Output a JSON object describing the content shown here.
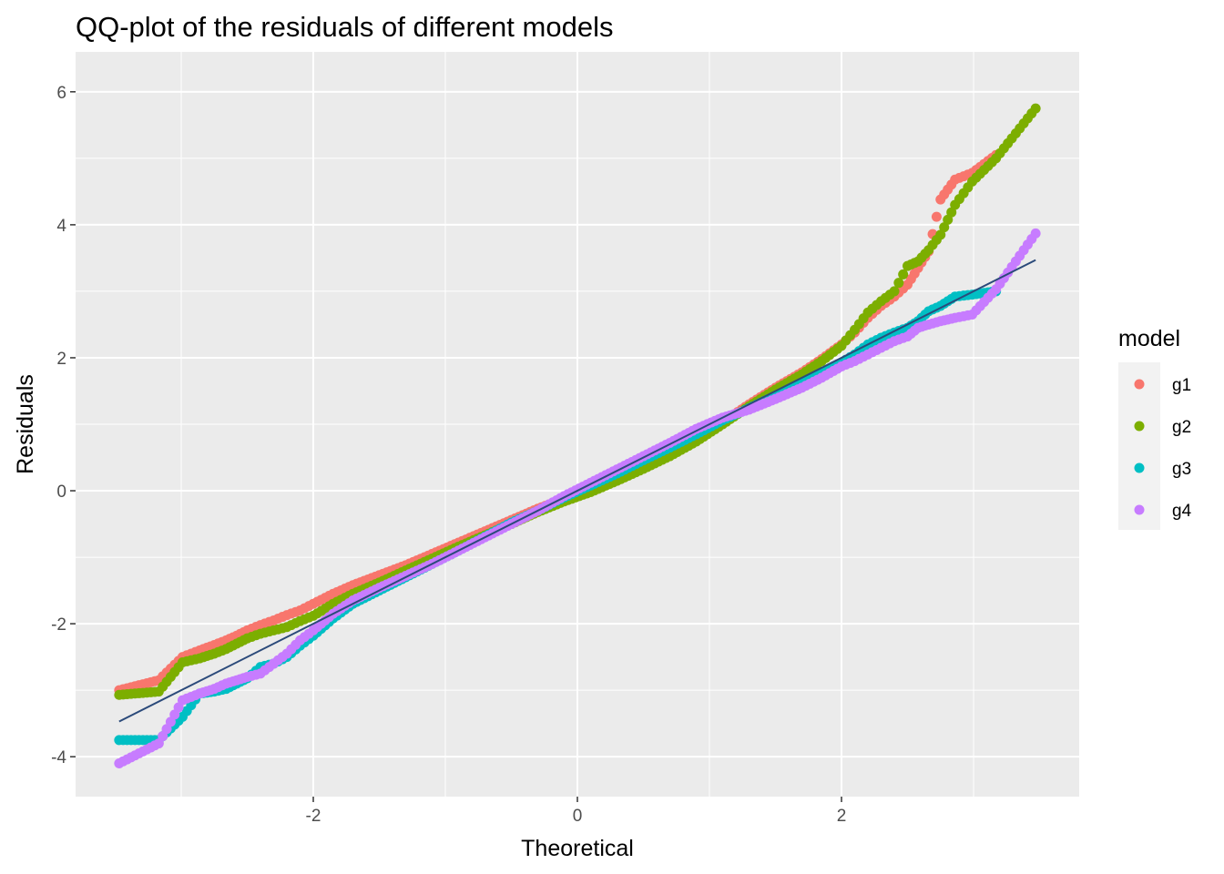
{
  "chart_data": {
    "type": "scatter",
    "title": "QQ-plot of the residuals of different models",
    "xlabel": "Theoretical",
    "ylabel": "Residuals",
    "xlim": [
      -3.8,
      3.8
    ],
    "ylim": [
      -4.6,
      6.6
    ],
    "x_ticks": [
      -2,
      0,
      2
    ],
    "x_tick_labels": [
      "-2",
      "0",
      "2"
    ],
    "y_ticks": [
      -4,
      -2,
      0,
      2,
      4,
      6
    ],
    "y_tick_labels": [
      "-4",
      "-2",
      "0",
      "2",
      "4",
      "6"
    ],
    "grid": true,
    "legend": {
      "title": "model",
      "position": "right"
    },
    "reference_line": {
      "x": [
        -3.47,
        3.47
      ],
      "y": [
        -3.47,
        3.47
      ],
      "color": "#2b4a7a"
    },
    "series": [
      {
        "name": "g1",
        "color": "#F8766D",
        "x": [
          -3.47,
          -3.17,
          -2.99,
          -2.86,
          -2.75,
          -2.66,
          -2.58,
          -2.5,
          -2.4,
          -2.3,
          -2.2,
          -2.1,
          -2.0,
          -1.85,
          -1.7,
          -1.5,
          -1.3,
          -1.1,
          -0.9,
          -0.7,
          -0.5,
          -0.3,
          -0.1,
          0.1,
          0.3,
          0.5,
          0.7,
          0.9,
          1.1,
          1.3,
          1.5,
          1.7,
          1.85,
          2.0,
          2.1,
          2.2,
          2.3,
          2.4,
          2.5,
          2.58,
          2.66,
          2.75,
          2.86,
          2.99,
          3.17
        ],
        "y": [
          -3.0,
          -2.85,
          -2.5,
          -2.4,
          -2.32,
          -2.25,
          -2.18,
          -2.1,
          -2.02,
          -1.95,
          -1.87,
          -1.8,
          -1.7,
          -1.55,
          -1.42,
          -1.27,
          -1.12,
          -0.95,
          -0.78,
          -0.61,
          -0.44,
          -0.27,
          -0.12,
          0.02,
          0.18,
          0.36,
          0.55,
          0.78,
          1.03,
          1.3,
          1.55,
          1.78,
          1.98,
          2.2,
          2.38,
          2.6,
          2.78,
          2.92,
          3.1,
          3.35,
          3.6,
          4.38,
          4.68,
          4.78,
          5.05
        ]
      },
      {
        "name": "g2",
        "color": "#7CAE00",
        "x": [
          -3.47,
          -3.17,
          -2.99,
          -2.86,
          -2.75,
          -2.66,
          -2.58,
          -2.5,
          -2.4,
          -2.3,
          -2.2,
          -2.1,
          -2.0,
          -1.85,
          -1.7,
          -1.5,
          -1.3,
          -1.1,
          -0.9,
          -0.7,
          -0.5,
          -0.3,
          -0.1,
          0.1,
          0.3,
          0.5,
          0.7,
          0.9,
          1.1,
          1.3,
          1.5,
          1.7,
          1.85,
          2.0,
          2.1,
          2.2,
          2.3,
          2.4,
          2.5,
          2.58,
          2.66,
          2.75,
          2.86,
          2.99,
          3.17,
          3.47
        ],
        "y": [
          -3.07,
          -3.02,
          -2.58,
          -2.52,
          -2.45,
          -2.38,
          -2.3,
          -2.22,
          -2.15,
          -2.1,
          -2.05,
          -1.96,
          -1.88,
          -1.7,
          -1.55,
          -1.38,
          -1.2,
          -1.02,
          -0.84,
          -0.67,
          -0.5,
          -0.32,
          -0.16,
          -0.02,
          0.15,
          0.33,
          0.52,
          0.74,
          1.0,
          1.27,
          1.52,
          1.75,
          1.95,
          2.18,
          2.42,
          2.68,
          2.85,
          3.0,
          3.38,
          3.45,
          3.62,
          3.85,
          4.3,
          4.65,
          5.0,
          5.75
        ]
      },
      {
        "name": "g3",
        "color": "#00BFC4",
        "x": [
          -3.47,
          -3.17,
          -2.99,
          -2.86,
          -2.75,
          -2.66,
          -2.58,
          -2.5,
          -2.4,
          -2.3,
          -2.2,
          -2.1,
          -2.0,
          -1.85,
          -1.7,
          -1.5,
          -1.3,
          -1.1,
          -0.9,
          -0.7,
          -0.5,
          -0.3,
          -0.1,
          0.1,
          0.3,
          0.5,
          0.7,
          0.9,
          1.1,
          1.3,
          1.5,
          1.7,
          1.85,
          2.0,
          2.1,
          2.2,
          2.3,
          2.4,
          2.5,
          2.58,
          2.66,
          2.75,
          2.86,
          2.99,
          3.17
        ],
        "y": [
          -3.75,
          -3.75,
          -3.4,
          -3.05,
          -3.02,
          -2.98,
          -2.9,
          -2.82,
          -2.65,
          -2.6,
          -2.5,
          -2.33,
          -2.18,
          -1.92,
          -1.7,
          -1.5,
          -1.3,
          -1.1,
          -0.9,
          -0.69,
          -0.48,
          -0.3,
          -0.1,
          0.08,
          0.26,
          0.46,
          0.65,
          0.85,
          1.06,
          1.24,
          1.43,
          1.62,
          1.78,
          1.93,
          2.05,
          2.2,
          2.3,
          2.38,
          2.45,
          2.55,
          2.7,
          2.78,
          2.92,
          2.95,
          3.0
        ]
      },
      {
        "name": "g4",
        "color": "#C77CFF",
        "x": [
          -3.47,
          -3.17,
          -2.99,
          -2.86,
          -2.75,
          -2.66,
          -2.58,
          -2.5,
          -2.4,
          -2.3,
          -2.2,
          -2.1,
          -2.0,
          -1.85,
          -1.7,
          -1.5,
          -1.3,
          -1.1,
          -0.9,
          -0.7,
          -0.5,
          -0.3,
          -0.1,
          0.1,
          0.3,
          0.5,
          0.7,
          0.9,
          1.1,
          1.3,
          1.5,
          1.7,
          1.85,
          2.0,
          2.1,
          2.2,
          2.3,
          2.4,
          2.5,
          2.58,
          2.66,
          2.75,
          2.86,
          2.99,
          3.17,
          3.47
        ],
        "y": [
          -4.1,
          -3.8,
          -3.15,
          -3.05,
          -2.98,
          -2.9,
          -2.85,
          -2.8,
          -2.75,
          -2.6,
          -2.45,
          -2.25,
          -2.1,
          -1.85,
          -1.65,
          -1.46,
          -1.28,
          -1.1,
          -0.9,
          -0.7,
          -0.5,
          -0.3,
          -0.08,
          0.12,
          0.32,
          0.52,
          0.72,
          0.93,
          1.1,
          1.22,
          1.38,
          1.55,
          1.7,
          1.87,
          1.95,
          2.05,
          2.15,
          2.25,
          2.32,
          2.45,
          2.5,
          2.55,
          2.6,
          2.65,
          3.03,
          3.87
        ]
      }
    ]
  }
}
